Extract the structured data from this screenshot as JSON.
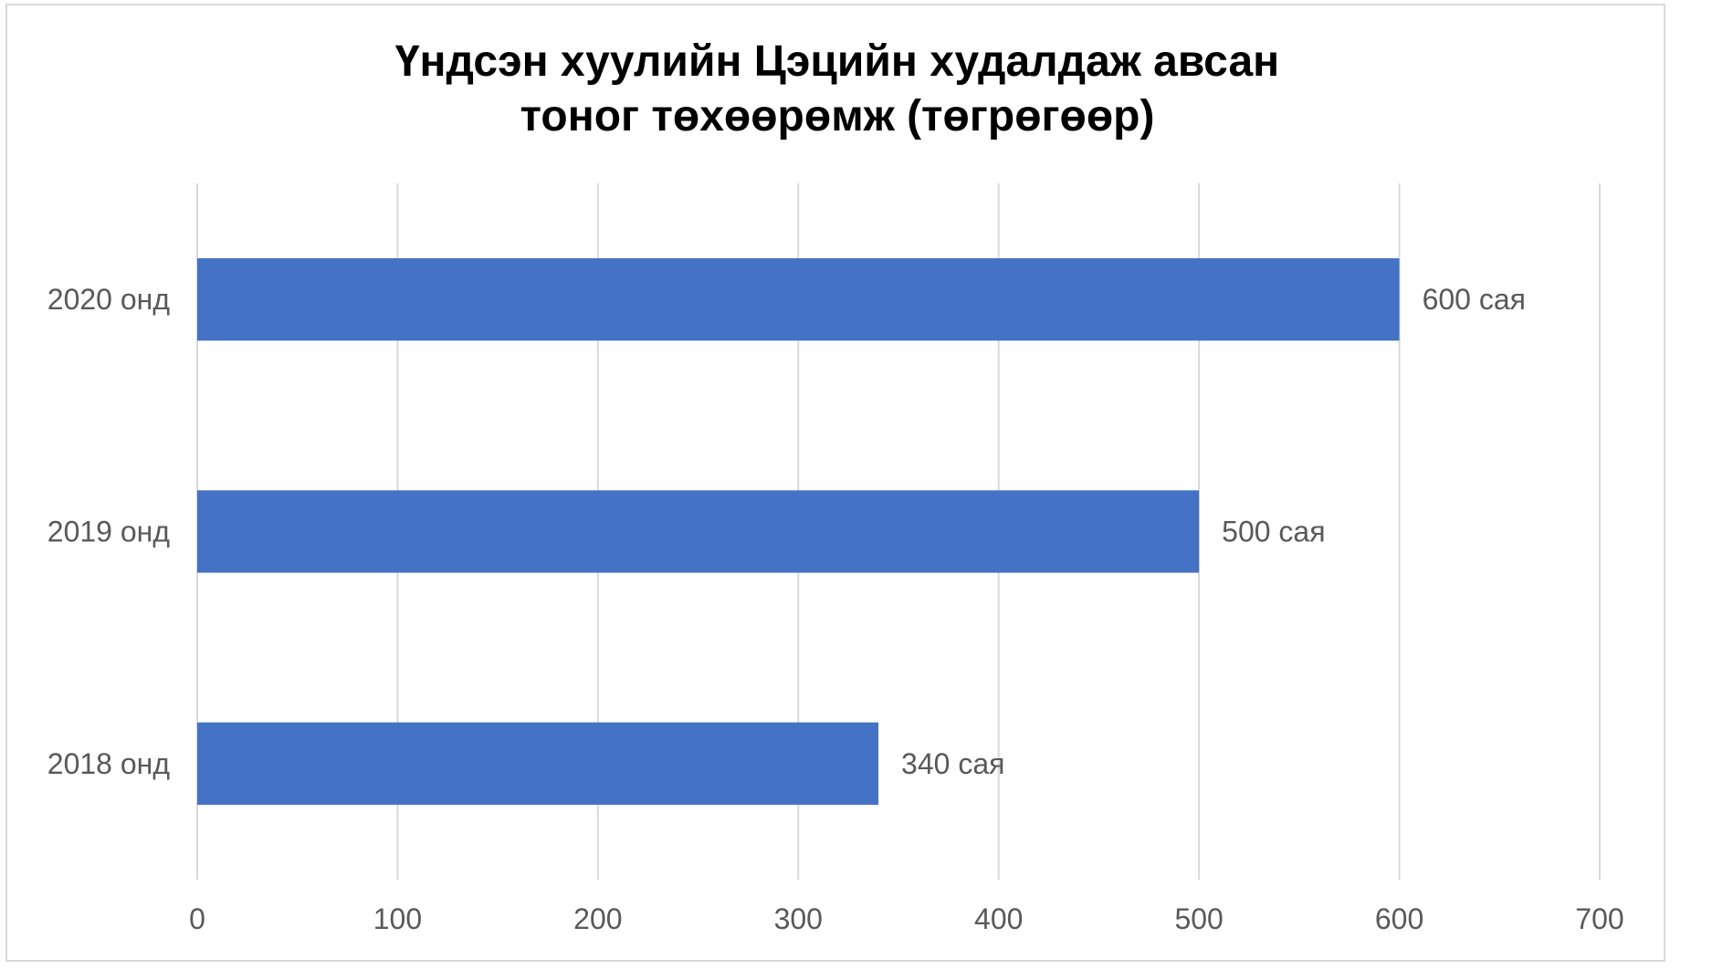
{
  "chart_data": {
    "type": "bar",
    "orientation": "horizontal",
    "title_lines": [
      "Үндсэн хуулийн Цэцийн худалдаж авсан",
      "тоног төхөөрөмж (төгрөгөөр)"
    ],
    "categories": [
      "2020 онд",
      "2019 онд",
      "2018 онд"
    ],
    "values": [
      600,
      500,
      340
    ],
    "data_labels": [
      "600 сая",
      "500 сая",
      "340 сая"
    ],
    "xlim": [
      0,
      700
    ],
    "x_ticks": [
      0,
      100,
      200,
      300,
      400,
      500,
      600,
      700
    ],
    "xlabel": "",
    "ylabel": "",
    "grid": "vertical",
    "legend": "none",
    "bar_color": "#4472C4",
    "gridline_color": "#D9D9D9",
    "text_color": "#595959"
  }
}
